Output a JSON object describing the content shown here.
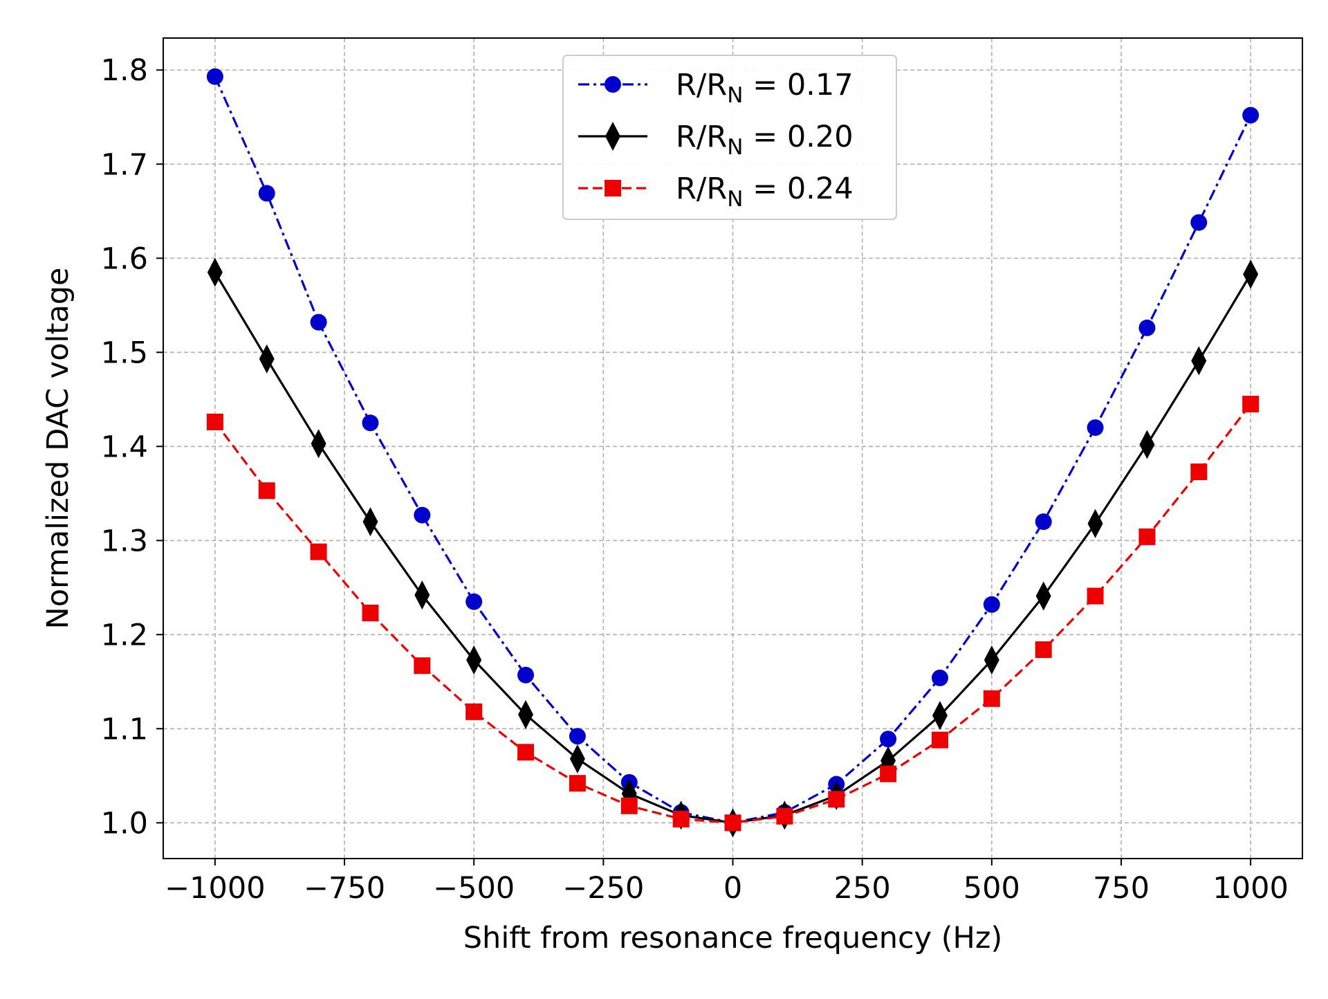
{
  "chart_data": {
    "type": "line",
    "title": "",
    "xlabel": "Shift from resonance frequency (Hz)",
    "ylabel": "Normalized DAC voltage",
    "xlim": [
      -1100,
      1100
    ],
    "ylim": [
      0.962,
      1.834
    ],
    "grid": true,
    "legend_position": "top-center",
    "x_ticks": [
      -1000,
      -750,
      -500,
      -250,
      0,
      250,
      500,
      750,
      1000
    ],
    "x_tick_labels": [
      "−1000",
      "−750",
      "−500",
      "−250",
      "0",
      "250",
      "500",
      "750",
      "1000"
    ],
    "y_ticks": [
      1.0,
      1.1,
      1.2,
      1.3,
      1.4,
      1.5,
      1.6,
      1.7,
      1.8
    ],
    "y_tick_labels": [
      "1.0",
      "1.1",
      "1.2",
      "1.3",
      "1.4",
      "1.5",
      "1.6",
      "1.7",
      "1.8"
    ],
    "x": [
      -1000,
      -900,
      -800,
      -700,
      -600,
      -500,
      -400,
      -300,
      -200,
      -100,
      0,
      100,
      200,
      300,
      400,
      500,
      600,
      700,
      800,
      900,
      1000
    ],
    "series": [
      {
        "name": "R/R_N = 0.17",
        "legend_prefix": "R/R",
        "legend_sub": "N",
        "legend_suffix": " = 0.17",
        "color": "#0000cc",
        "line_style": "dashdot",
        "marker": "circle",
        "values": [
          1.793,
          1.669,
          1.532,
          1.425,
          1.327,
          1.235,
          1.157,
          1.092,
          1.043,
          1.011,
          1.0,
          1.011,
          1.041,
          1.089,
          1.154,
          1.232,
          1.32,
          1.42,
          1.526,
          1.638,
          1.752
        ]
      },
      {
        "name": "R/R_N = 0.20",
        "legend_prefix": "R/R",
        "legend_sub": "N",
        "legend_suffix": " = 0.20",
        "color": "#000000",
        "line_style": "solid",
        "marker": "thin_diamond",
        "values": [
          1.585,
          1.493,
          1.403,
          1.32,
          1.242,
          1.173,
          1.115,
          1.068,
          1.031,
          1.008,
          1.0,
          1.008,
          1.029,
          1.066,
          1.114,
          1.173,
          1.241,
          1.318,
          1.402,
          1.491,
          1.583
        ]
      },
      {
        "name": "R/R_N = 0.24",
        "legend_prefix": "R/R",
        "legend_sub": "N",
        "legend_suffix": " = 0.24",
        "color": "#ee0000",
        "line_style": "dashed",
        "marker": "square",
        "values": [
          1.426,
          1.353,
          1.288,
          1.223,
          1.167,
          1.118,
          1.075,
          1.042,
          1.018,
          1.004,
          1.0,
          1.007,
          1.025,
          1.052,
          1.088,
          1.132,
          1.184,
          1.241,
          1.304,
          1.373,
          1.445
        ]
      }
    ]
  }
}
